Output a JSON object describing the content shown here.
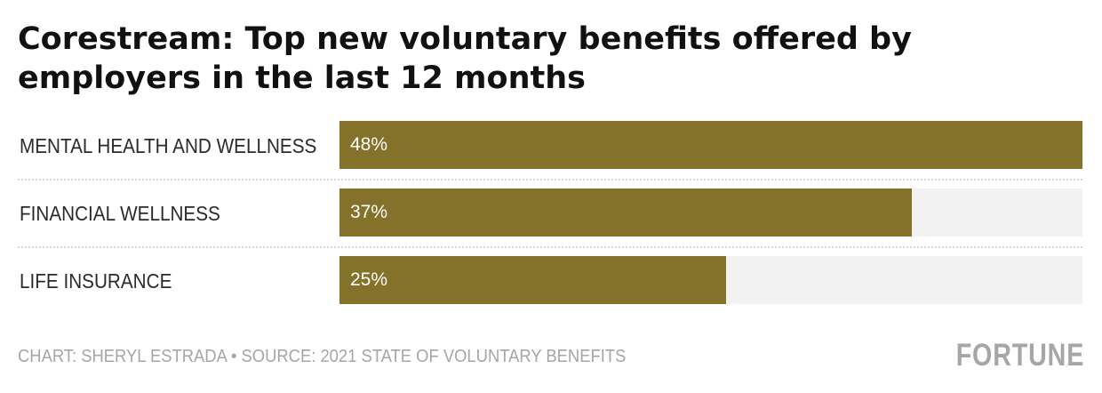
{
  "title": "Corestream: Top new voluntary benefits offered by employers in the last 12 months",
  "footer": {
    "credit": "CHART: SHERYL ESTRADA • SOURCE: 2021 STATE OF VOLUNTARY BENEFITS",
    "logo": "FORTUNE"
  },
  "colors": {
    "bar": "#85722a",
    "track": "#f2f2f2",
    "label": "#2a2a2a",
    "muted": "#a6a6a6"
  },
  "chart_data": {
    "type": "bar",
    "orientation": "horizontal",
    "title": "Corestream: Top new voluntary benefits offered by employers in the last 12 months",
    "categories": [
      "MENTAL HEALTH AND WELLNESS",
      "FINANCIAL WELLNESS",
      "LIFE INSURANCE"
    ],
    "values": [
      48,
      37,
      25
    ],
    "value_labels": [
      "48%",
      "37%",
      "25%"
    ],
    "unit": "%",
    "xlim": [
      0,
      48
    ],
    "xlabel": "",
    "ylabel": "",
    "grid": false,
    "legend": "none"
  }
}
